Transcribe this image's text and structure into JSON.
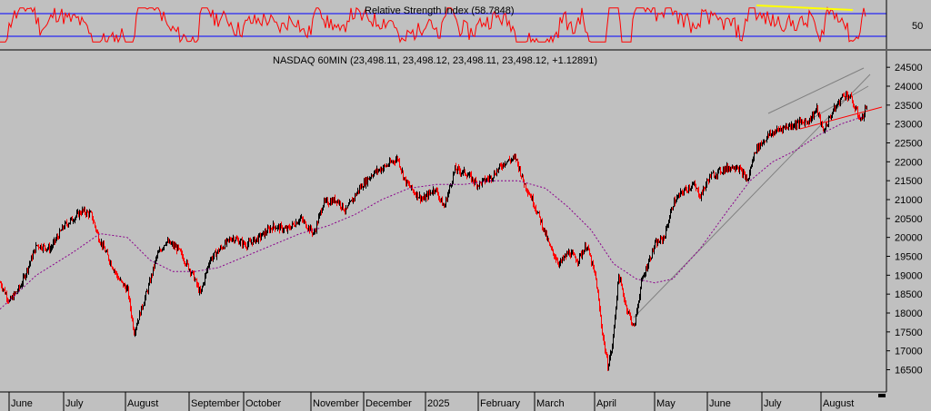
{
  "chart_data": [
    {
      "panel": "rsi",
      "type": "line",
      "title": "Relative Strength Index (58.7848)",
      "y_ticks": [
        50
      ],
      "ylim": [
        0,
        100
      ],
      "reference_lines": [
        70,
        30
      ],
      "colors": {
        "rsi": "#ff0000",
        "divergence": "#ffff00",
        "bands": "#0000ff"
      }
    },
    {
      "panel": "price",
      "type": "line",
      "title": "NASDAQ 60MIN (23,498.11, 23,498.12, 23,498.11, 23,498.12, +1.12891)",
      "y_ticks": [
        16500,
        17000,
        17500,
        18000,
        18500,
        19000,
        19500,
        20000,
        20500,
        21000,
        21500,
        22000,
        22500,
        23000,
        23500,
        24000,
        24500
      ],
      "ylim": [
        16200,
        24600
      ],
      "x_labels": [
        "June",
        "July",
        "August",
        "September",
        "October",
        "November",
        "December",
        "2025",
        "February",
        "March",
        "April",
        "May",
        "June",
        "July",
        "August"
      ],
      "series": [
        {
          "values": [
            [
              0,
              18800
            ],
            [
              10,
              18300
            ],
            [
              22,
              18700
            ],
            [
              40,
              19800
            ],
            [
              55,
              19700
            ],
            [
              70,
              20300
            ],
            [
              90,
              20700
            ],
            [
              100,
              20600
            ],
            [
              108,
              20000
            ],
            [
              120,
              19400
            ],
            [
              130,
              18900
            ],
            [
              140,
              18600
            ],
            [
              147,
              17500
            ],
            [
              155,
              18100
            ],
            [
              163,
              18700
            ],
            [
              172,
              19500
            ],
            [
              182,
              19900
            ],
            [
              195,
              19700
            ],
            [
              205,
              19300
            ],
            [
              212,
              19000
            ],
            [
              220,
              18500
            ],
            [
              230,
              19400
            ],
            [
              242,
              19700
            ],
            [
              255,
              20000
            ],
            [
              270,
              19800
            ],
            [
              285,
              20000
            ],
            [
              300,
              20300
            ],
            [
              315,
              20200
            ],
            [
              330,
              20500
            ],
            [
              345,
              20100
            ],
            [
              355,
              20900
            ],
            [
              370,
              21000
            ],
            [
              380,
              20700
            ],
            [
              395,
              21300
            ],
            [
              410,
              21700
            ],
            [
              425,
              21900
            ],
            [
              437,
              22100
            ],
            [
              445,
              21500
            ],
            [
              455,
              21200
            ],
            [
              465,
              21000
            ],
            [
              478,
              21300
            ],
            [
              488,
              20800
            ],
            [
              500,
              21800
            ],
            [
              512,
              21700
            ],
            [
              525,
              21400
            ],
            [
              540,
              21600
            ],
            [
              555,
              22000
            ],
            [
              567,
              22100
            ],
            [
              575,
              21500
            ],
            [
              585,
              21000
            ],
            [
              595,
              20400
            ],
            [
              605,
              19700
            ],
            [
              615,
              19300
            ],
            [
              625,
              19600
            ],
            [
              635,
              19400
            ],
            [
              645,
              19800
            ],
            [
              655,
              18900
            ],
            [
              662,
              17500
            ],
            [
              668,
              16600
            ],
            [
              673,
              17100
            ],
            [
              680,
              19000
            ],
            [
              688,
              18200
            ],
            [
              697,
              17600
            ],
            [
              705,
              18800
            ],
            [
              712,
              19300
            ],
            [
              720,
              19800
            ],
            [
              730,
              20000
            ],
            [
              740,
              20900
            ],
            [
              750,
              21200
            ],
            [
              762,
              21400
            ],
            [
              770,
              21100
            ],
            [
              780,
              21600
            ],
            [
              795,
              21800
            ],
            [
              810,
              21900
            ],
            [
              822,
              21500
            ],
            [
              830,
              22300
            ],
            [
              845,
              22700
            ],
            [
              860,
              22900
            ],
            [
              875,
              23000
            ],
            [
              890,
              23100
            ],
            [
              898,
              23400
            ],
            [
              905,
              22800
            ],
            [
              915,
              23300
            ],
            [
              928,
              23800
            ],
            [
              935,
              23700
            ],
            [
              940,
              23400
            ],
            [
              947,
              23100
            ],
            [
              953,
              23500
            ]
          ]
        },
        {
          "values": [
            [
              0,
              18100
            ],
            [
              40,
              19000
            ],
            [
              80,
              19600
            ],
            [
              110,
              20100
            ],
            [
              140,
              20000
            ],
            [
              165,
              19400
            ],
            [
              190,
              19100
            ],
            [
              215,
              19100
            ],
            [
              240,
              19200
            ],
            [
              270,
              19500
            ],
            [
              300,
              19800
            ],
            [
              330,
              20100
            ],
            [
              360,
              20300
            ],
            [
              390,
              20600
            ],
            [
              420,
              21000
            ],
            [
              450,
              21300
            ],
            [
              480,
              21400
            ],
            [
              510,
              21400
            ],
            [
              540,
              21500
            ],
            [
              570,
              21500
            ],
            [
              600,
              21300
            ],
            [
              625,
              20800
            ],
            [
              650,
              20200
            ],
            [
              675,
              19300
            ],
            [
              700,
              18900
            ],
            [
              720,
              18800
            ],
            [
              740,
              18900
            ],
            [
              770,
              19700
            ],
            [
              800,
              20700
            ],
            [
              825,
              21500
            ],
            [
              850,
              22000
            ],
            [
              875,
              22300
            ],
            [
              900,
              22700
            ],
            [
              925,
              23000
            ],
            [
              950,
              23200
            ]
          ]
        }
      ],
      "colors": {
        "price_up": "#000000",
        "price_down": "#ff0000",
        "moving_average": "#8b008b",
        "trendline": "#ff0000",
        "channel": "#808080"
      }
    }
  ]
}
